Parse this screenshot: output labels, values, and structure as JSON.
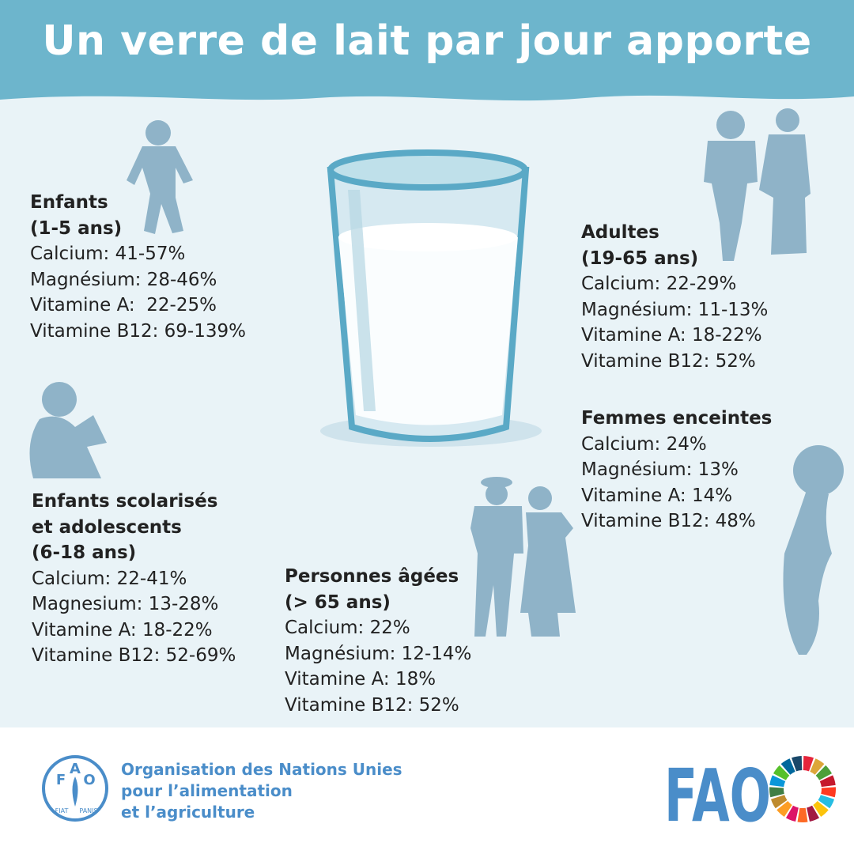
{
  "header": {
    "title": "Un verre de lait par jour apporte"
  },
  "groups": [
    {
      "title": [
        "Enfants",
        "(1-5 ans)"
      ],
      "items": [
        "Calcium: 41-57%",
        "Magnésium: 28-46%",
        "Vitamine A:  22-25%",
        "Vitamine B12: 69-139%"
      ]
    },
    {
      "title": [
        "Adultes",
        "(19-65 ans)"
      ],
      "items": [
        "Calcium: 22-29%",
        "Magnésium: 11-13%",
        "Vitamine A: 18-22%",
        "Vitamine B12: 52%"
      ]
    },
    {
      "title": [
        "Femmes enceintes"
      ],
      "items": [
        "Calcium: 24%",
        "Magnésium: 13%",
        "Vitamine A: 14%",
        "Vitamine B12: 48%"
      ]
    },
    {
      "title": [
        "Enfants scolarisés",
        "et adolescents",
        "(6-18 ans)"
      ],
      "items": [
        "Calcium: 22-41%",
        "Magnesium: 13-28%",
        "Vitamine A: 18-22%",
        "Vitamine B12: 52-69%"
      ]
    },
    {
      "title": [
        "Personnes âgées",
        "(> 65 ans)"
      ],
      "items": [
        "Calcium: 22%",
        "Magnésium: 12-14%",
        "Vitamine A: 18%",
        "Vitamine B12: 52%"
      ]
    }
  ],
  "footer": {
    "organization": [
      "Organisation des Nations Unies",
      "pour l’alimentation",
      "et l’agriculture"
    ],
    "emblem": {
      "letters": [
        "F",
        "A",
        "O"
      ],
      "motto": [
        "FIAT",
        "PANIS"
      ]
    },
    "logo": "FAO"
  }
}
